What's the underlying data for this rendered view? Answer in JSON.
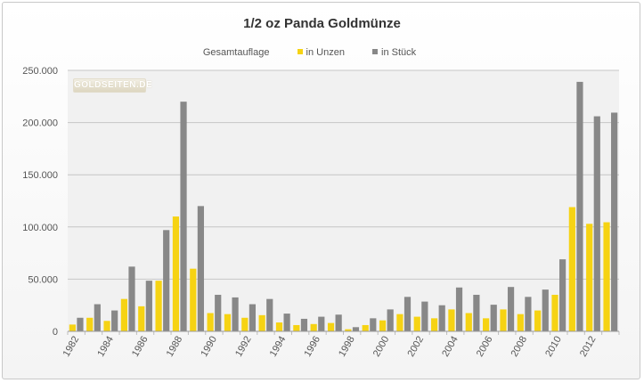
{
  "chart_data": {
    "type": "bar",
    "title": "1/2 oz Panda Goldmünze",
    "legend": {
      "title": "Gesamtauflage",
      "placement": "top"
    },
    "x": [
      1982,
      1983,
      1984,
      1985,
      1986,
      1987,
      1988,
      1989,
      1990,
      1991,
      1992,
      1993,
      1994,
      1995,
      1996,
      1997,
      1998,
      1999,
      2000,
      2001,
      2002,
      2003,
      2004,
      2005,
      2006,
      2007,
      2008,
      2009,
      2010,
      2011,
      2012,
      2013
    ],
    "x_tick_labels": [
      "1982",
      "1984",
      "1986",
      "1988",
      "1990",
      "1992",
      "1994",
      "1996",
      "1998",
      "2000",
      "2002",
      "2004",
      "2006",
      "2008",
      "2010",
      "2012"
    ],
    "series": [
      {
        "name": "in Unzen",
        "color": "#f6d313",
        "values": [
          6500,
          13000,
          10000,
          31000,
          24000,
          48500,
          110000,
          60000,
          17500,
          16500,
          13000,
          15500,
          8500,
          6000,
          7000,
          8000,
          2000,
          6000,
          10500,
          16500,
          14000,
          12500,
          21000,
          17500,
          12500,
          21000,
          16500,
          20000,
          35000,
          119000,
          103000,
          104500
        ]
      },
      {
        "name": "in Stück",
        "color": "#888888",
        "values": [
          13000,
          26000,
          20000,
          62000,
          48500,
          97000,
          220000,
          120000,
          35000,
          32500,
          26000,
          31000,
          17000,
          12000,
          14000,
          16000,
          4000,
          12500,
          21000,
          33000,
          28500,
          25000,
          42000,
          35000,
          25500,
          42500,
          33000,
          40000,
          69000,
          239000,
          206000,
          209500
        ]
      }
    ],
    "ylim": [
      0,
      250000
    ],
    "y_ticks": [
      0,
      50000,
      100000,
      150000,
      200000,
      250000
    ],
    "y_tick_labels": [
      "0",
      "50.000",
      "100.000",
      "150.000",
      "200.000",
      "250.000"
    ],
    "xlabel": "",
    "ylabel": "",
    "grid": true
  },
  "watermark_text": "GOLDSEITEN.DE"
}
